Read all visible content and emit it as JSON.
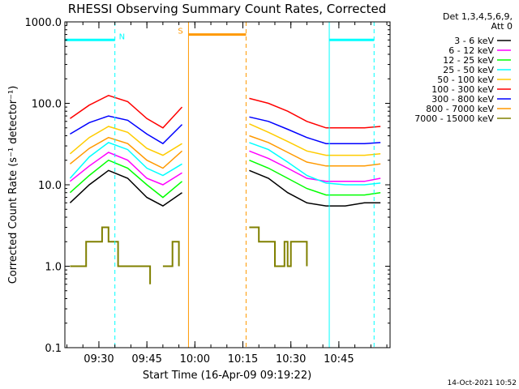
{
  "chart_data": {
    "type": "line",
    "title": "RHESSI Observing Summary Count Rates, Corrected",
    "xlabel": "Start Time (16-Apr-09 09:19:22)",
    "ylabel": "Corrected Count Rate (s⁻¹ detector⁻¹)",
    "yscale": "log",
    "ylim": [
      0.1,
      1000
    ],
    "xlim": [
      "09:19:22",
      "11:01:00"
    ],
    "x_ticks": [
      "09:30",
      "09:45",
      "10:00",
      "10:15",
      "10:30",
      "10:45"
    ],
    "y_ticks": [
      "0.1",
      "1.0",
      "10.0",
      "100.0",
      "1000.0"
    ],
    "legend_header": [
      "Det 1,3,4,5,6,9,",
      "Att 0"
    ],
    "legend_position": "right",
    "timestamp": "14-Oct-2021 10:52",
    "data_gap": [
      "09:56",
      "10:17"
    ],
    "series": [
      {
        "name": "3 - 6 keV",
        "color": "#000000",
        "x": [
          "09:21",
          "09:27",
          "09:33",
          "09:39",
          "09:45",
          "09:50",
          "09:56",
          "10:17",
          "10:23",
          "10:29",
          "10:35",
          "10:41",
          "10:47",
          "10:53",
          "10:58"
        ],
        "values": [
          6,
          10,
          15,
          12,
          7,
          5.5,
          8,
          15,
          12,
          8,
          6,
          5.5,
          5.5,
          6,
          6
        ]
      },
      {
        "name": "6 - 12 keV",
        "color": "#ff00ff",
        "x": [
          "09:21",
          "09:27",
          "09:33",
          "09:39",
          "09:45",
          "09:50",
          "09:56",
          "10:17",
          "10:23",
          "10:29",
          "10:35",
          "10:41",
          "10:47",
          "10:53",
          "10:58"
        ],
        "values": [
          11,
          17,
          25,
          20,
          12,
          10,
          14,
          26,
          21,
          16,
          12,
          11,
          11,
          11,
          12
        ]
      },
      {
        "name": "12 - 25 keV",
        "color": "#00ff00",
        "x": [
          "09:21",
          "09:27",
          "09:33",
          "09:39",
          "09:45",
          "09:50",
          "09:56",
          "10:17",
          "10:23",
          "10:29",
          "10:35",
          "10:41",
          "10:47",
          "10:53",
          "10:58"
        ],
        "values": [
          8,
          13,
          20,
          16,
          10,
          7,
          11,
          20,
          16,
          12,
          9,
          7.5,
          7.5,
          7.5,
          8
        ]
      },
      {
        "name": "25 - 50 keV",
        "color": "#00ffff",
        "x": [
          "09:21",
          "09:27",
          "09:33",
          "09:39",
          "09:45",
          "09:50",
          "09:56",
          "10:17",
          "10:23",
          "10:29",
          "10:35",
          "10:41",
          "10:47",
          "10:53",
          "10:58"
        ],
        "values": [
          12,
          22,
          33,
          27,
          16,
          13,
          18,
          33,
          27,
          19,
          13,
          10.5,
          10,
          10,
          10.5
        ]
      },
      {
        "name": "50 - 100 keV",
        "color": "#ffcc00",
        "x": [
          "09:21",
          "09:27",
          "09:33",
          "09:39",
          "09:45",
          "09:50",
          "09:56",
          "10:17",
          "10:23",
          "10:29",
          "10:35",
          "10:41",
          "10:47",
          "10:53",
          "10:58"
        ],
        "values": [
          24,
          38,
          52,
          44,
          28,
          23,
          32,
          56,
          44,
          34,
          26,
          23,
          23,
          23,
          24
        ]
      },
      {
        "name": "100 - 300 keV",
        "color": "#ff0000",
        "x": [
          "09:21",
          "09:27",
          "09:33",
          "09:39",
          "09:45",
          "09:50",
          "09:56",
          "10:17",
          "10:23",
          "10:29",
          "10:35",
          "10:41",
          "10:47",
          "10:53",
          "10:58"
        ],
        "values": [
          65,
          95,
          125,
          105,
          65,
          50,
          90,
          115,
          100,
          80,
          60,
          50,
          50,
          50,
          52
        ]
      },
      {
        "name": "300 - 800 keV",
        "color": "#0000ff",
        "x": [
          "09:21",
          "09:27",
          "09:33",
          "09:39",
          "09:45",
          "09:50",
          "09:56",
          "10:17",
          "10:23",
          "10:29",
          "10:35",
          "10:41",
          "10:47",
          "10:53",
          "10:58"
        ],
        "values": [
          42,
          58,
          70,
          62,
          42,
          32,
          55,
          68,
          60,
          48,
          38,
          32,
          32,
          32,
          33
        ]
      },
      {
        "name": "800 - 7000 keV",
        "color": "#ff9900",
        "x": [
          "09:21",
          "09:27",
          "09:33",
          "09:39",
          "09:45",
          "09:50",
          "09:56",
          "10:17",
          "10:23",
          "10:29",
          "10:35",
          "10:41",
          "10:47",
          "10:53",
          "10:58"
        ],
        "values": [
          18,
          28,
          38,
          32,
          20,
          16,
          26,
          40,
          33,
          25,
          19,
          17,
          17,
          17,
          18
        ]
      },
      {
        "name": "7000 - 15000 keV",
        "color": "#808000",
        "step": true,
        "x": [
          "09:21",
          "09:25",
          "09:26",
          "09:31",
          "09:33",
          "09:36",
          "09:38",
          "09:42",
          "09:46",
          "09:47",
          "09:50",
          "09:53",
          "09:55",
          "10:17",
          "10:20",
          "10:25",
          "10:28",
          "10:29",
          "10:30",
          "10:35"
        ],
        "values": [
          1,
          1,
          2,
          3,
          2,
          1,
          1,
          1,
          0.6,
          null,
          1,
          2,
          1,
          3,
          2,
          1,
          2,
          1,
          2,
          1
        ]
      }
    ],
    "flag_bars": [
      {
        "label": "N",
        "color": "#00ffff",
        "x_range": [
          "09:19:22",
          "09:35"
        ],
        "y": 600
      },
      {
        "label": "S",
        "color": "#ff9900",
        "x_range": [
          "09:58",
          "10:16"
        ],
        "y": 700
      },
      {
        "label": "",
        "color": "#00ffff",
        "x_range": [
          "10:42",
          "10:56"
        ],
        "y": 600
      }
    ],
    "markers": [
      {
        "time": "09:19:22",
        "color": "#00ffff",
        "style": "solid"
      },
      {
        "time": "09:35",
        "color": "#00ffff",
        "style": "dashed"
      },
      {
        "time": "09:58",
        "color": "#ff9900",
        "style": "solid"
      },
      {
        "time": "10:16",
        "color": "#ff9900",
        "style": "dashed"
      },
      {
        "time": "10:42",
        "color": "#00ffff",
        "style": "solid"
      },
      {
        "time": "10:56",
        "color": "#00ffff",
        "style": "dashed"
      }
    ],
    "grid": false
  }
}
